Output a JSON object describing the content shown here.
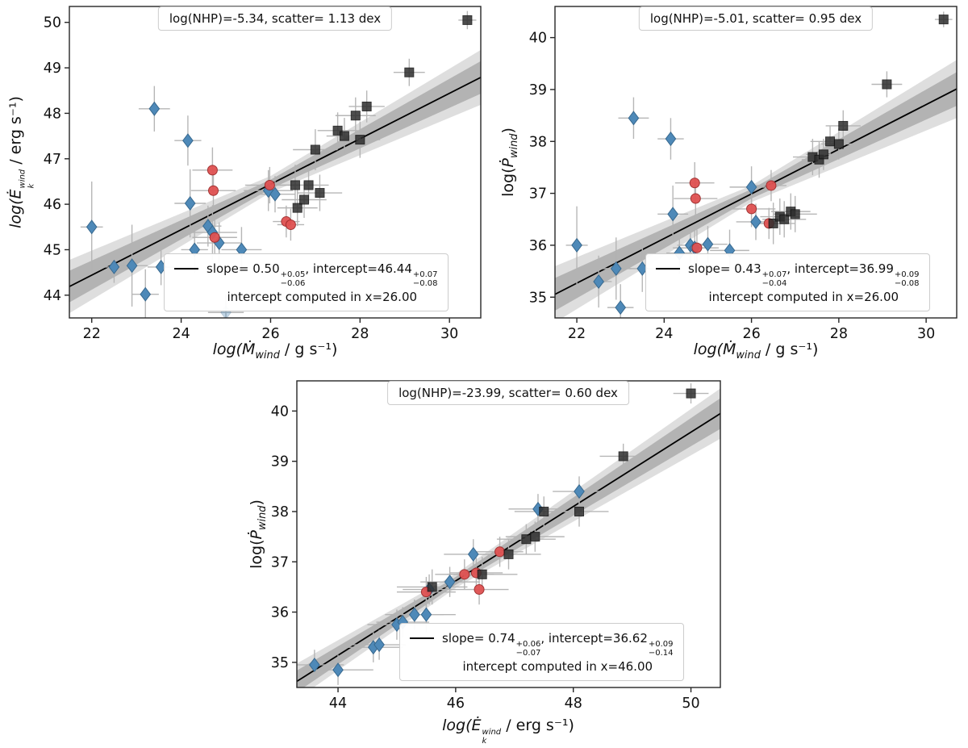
{
  "figure": {
    "background": "#ffffff"
  },
  "styles": {
    "fit_line_color": "#000000",
    "band_inner_color": "#8f8f8f",
    "band_outer_color": "#bdbdbd",
    "error_bar_color": "#b3b3b3",
    "frame_color": "#262626",
    "blue_marker": "#4e89b8",
    "red_marker": "#e05252",
    "dark_marker": "#2e2e2e"
  },
  "chart_data": [
    {
      "id": "ekwind-vs-mdot",
      "type": "scatter",
      "annotation": "log(NHP)=-5.34, scatter= 1.13 dex",
      "xlabel": "log(Mdot_wind / g s^-1)",
      "ylabel": "log(Edot_k^wind / erg s^-1)",
      "xlabel_tokens": [
        {
          "t": "log("
        },
        {
          "t": "Ṁ"
        },
        {
          "t": "wind",
          "pos": "sub"
        },
        {
          "t": " / g s⁻¹)",
          "pos": "roman"
        }
      ],
      "ylabel_tokens": [
        {
          "t": "log("
        },
        {
          "t": "Ė"
        },
        {
          "sup": "wind",
          "sub": "k"
        },
        {
          "t": " / erg s⁻¹)",
          "pos": "roman"
        }
      ],
      "xlim": [
        21.5,
        30.7
      ],
      "ylim": [
        43.5,
        50.35
      ],
      "xticks": [
        22,
        24,
        26,
        28,
        30
      ],
      "yticks": [
        44,
        45,
        46,
        47,
        48,
        49,
        50
      ],
      "fit": {
        "slope": 0.5,
        "intercept": 46.44,
        "x0": 26.0
      },
      "band": {
        "inner": [
          0.1,
          0.055
        ],
        "outer": [
          0.18,
          0.09
        ]
      },
      "legend_tokens": [
        {
          "t": "slope= 0.50"
        },
        {
          "sup": "+0.05",
          "sub": "−0.06"
        },
        {
          "t": ", intercept=46.44"
        },
        {
          "sup": "+0.07",
          "sub": "−0.08"
        }
      ],
      "legend_line2": "intercept computed in x=26.00",
      "series": [
        {
          "name": "blue-diamonds",
          "marker": "diamond",
          "fill": "#4e89b8",
          "edge": "#38698f",
          "alpha": 1.0,
          "points": [
            [
              22.0,
              45.5,
              0.25,
              1.0
            ],
            [
              22.5,
              44.62,
              0.3,
              0.35
            ],
            [
              22.9,
              44.65,
              0.35,
              0.9
            ],
            [
              23.2,
              44.02,
              0.3,
              0.55
            ],
            [
              23.4,
              48.1,
              0.35,
              0.5
            ],
            [
              23.55,
              44.62,
              0.3,
              0.4
            ],
            [
              24.15,
              47.4,
              0.3,
              0.55
            ],
            [
              24.2,
              46.02,
              0.35,
              0.75
            ],
            [
              24.3,
              45.0,
              0.3,
              0.5
            ],
            [
              24.6,
              45.52,
              0.3,
              0.45
            ],
            [
              24.7,
              45.38,
              0.55,
              0.6
            ],
            [
              24.85,
              45.15,
              0.5,
              0.45
            ],
            [
              25.0,
              43.62,
              0.4,
              0.4,
              0.35
            ],
            [
              25.35,
              45.0,
              0.45,
              0.5
            ],
            [
              25.95,
              46.3,
              0.55,
              0.45
            ],
            [
              26.1,
              46.22,
              0.45,
              0.4
            ]
          ]
        },
        {
          "name": "red-circles",
          "marker": "circle",
          "fill": "#e05252",
          "edge": "#9e2b2b",
          "alpha": 0.95,
          "points": [
            [
              24.7,
              46.75,
              0.45,
              0.5
            ],
            [
              24.72,
              46.3,
              0.5,
              0.45
            ],
            [
              24.75,
              45.27,
              0.5,
              0.4
            ],
            [
              25.98,
              46.42,
              0.55,
              0.4
            ],
            [
              26.35,
              45.62,
              0.3,
              0.35
            ],
            [
              26.45,
              45.55,
              0.3,
              0.35
            ]
          ]
        },
        {
          "name": "dark-squares",
          "marker": "square",
          "fill": "#2e2e2e",
          "edge": "#121212",
          "alpha": 0.85,
          "points": [
            [
              26.55,
              46.42,
              0.5,
              0.45
            ],
            [
              26.6,
              45.92,
              0.45,
              0.4
            ],
            [
              26.75,
              46.1,
              0.5,
              0.4
            ],
            [
              26.85,
              46.42,
              0.45,
              0.4
            ],
            [
              27.0,
              47.2,
              0.5,
              0.45
            ],
            [
              27.1,
              46.25,
              0.5,
              0.4
            ],
            [
              27.5,
              47.62,
              0.45,
              0.4
            ],
            [
              27.65,
              47.5,
              0.4,
              0.4
            ],
            [
              27.9,
              47.95,
              0.45,
              0.4
            ],
            [
              28.0,
              47.42,
              0.45,
              0.4
            ],
            [
              28.15,
              48.15,
              0.4,
              0.35
            ],
            [
              29.1,
              48.9,
              0.35,
              0.3
            ],
            [
              30.4,
              50.05,
              0.2,
              0.2
            ]
          ]
        }
      ]
    },
    {
      "id": "pwind-vs-mdot",
      "type": "scatter",
      "annotation": "log(NHP)=-5.01, scatter= 0.95 dex",
      "xlabel": "log(Mdot_wind / g s^-1)",
      "ylabel": "log(Pdot_wind)",
      "xlabel_tokens": [
        {
          "t": "log("
        },
        {
          "t": "Ṁ"
        },
        {
          "t": "wind",
          "pos": "sub"
        },
        {
          "t": " / g s⁻¹)",
          "pos": "roman"
        }
      ],
      "ylabel_tokens": [
        {
          "t": "log(",
          "pos": "roman"
        },
        {
          "t": "Ṗ"
        },
        {
          "t": "wind",
          "pos": "sub"
        },
        {
          "t": ")",
          "pos": "roman"
        }
      ],
      "xlim": [
        21.5,
        30.7
      ],
      "ylim": [
        34.6,
        40.6
      ],
      "xticks": [
        22,
        24,
        26,
        28,
        30
      ],
      "yticks": [
        35,
        36,
        37,
        38,
        39,
        40
      ],
      "fit": {
        "slope": 0.43,
        "intercept": 36.99,
        "x0": 26.0
      },
      "band": {
        "inner": [
          0.09,
          0.05
        ],
        "outer": [
          0.16,
          0.085
        ]
      },
      "legend_tokens": [
        {
          "t": "slope= 0.43"
        },
        {
          "sup": "+0.07",
          "sub": "−0.04"
        },
        {
          "t": ", intercept=36.99"
        },
        {
          "sup": "+0.09",
          "sub": "−0.08"
        }
      ],
      "legend_line2": "intercept computed in x=26.00",
      "series": [
        {
          "name": "blue-diamonds",
          "marker": "diamond",
          "fill": "#4e89b8",
          "edge": "#38698f",
          "alpha": 1.0,
          "points": [
            [
              22.0,
              36.0,
              0.25,
              0.75
            ],
            [
              22.5,
              35.3,
              0.3,
              0.5
            ],
            [
              22.9,
              35.55,
              0.35,
              0.6
            ],
            [
              23.0,
              34.8,
              0.3,
              0.45
            ],
            [
              23.3,
              38.45,
              0.35,
              0.4
            ],
            [
              23.5,
              35.55,
              0.3,
              0.45
            ],
            [
              24.15,
              38.05,
              0.3,
              0.4
            ],
            [
              24.2,
              36.6,
              0.35,
              0.55
            ],
            [
              24.35,
              35.85,
              0.3,
              0.4
            ],
            [
              24.6,
              36.0,
              0.3,
              0.35
            ],
            [
              24.7,
              35.95,
              0.5,
              0.4
            ],
            [
              25.0,
              36.02,
              0.45,
              0.35
            ],
            [
              25.5,
              35.9,
              0.45,
              0.4
            ],
            [
              26.0,
              37.12,
              0.5,
              0.4
            ],
            [
              26.1,
              36.45,
              0.45,
              0.35
            ]
          ]
        },
        {
          "name": "red-circles",
          "marker": "circle",
          "fill": "#e05252",
          "edge": "#9e2b2b",
          "alpha": 0.95,
          "points": [
            [
              24.7,
              37.2,
              0.45,
              0.4
            ],
            [
              24.72,
              36.9,
              0.5,
              0.4
            ],
            [
              24.75,
              35.95,
              0.5,
              0.35
            ],
            [
              26.0,
              36.7,
              0.55,
              0.35
            ],
            [
              26.4,
              36.42,
              0.3,
              0.3
            ],
            [
              26.45,
              37.15,
              0.35,
              0.3
            ]
          ]
        },
        {
          "name": "dark-squares",
          "marker": "square",
          "fill": "#2e2e2e",
          "edge": "#121212",
          "alpha": 0.85,
          "points": [
            [
              26.5,
              36.42,
              0.5,
              0.4
            ],
            [
              26.65,
              36.55,
              0.45,
              0.35
            ],
            [
              26.75,
              36.5,
              0.5,
              0.35
            ],
            [
              26.9,
              36.65,
              0.45,
              0.35
            ],
            [
              27.0,
              36.6,
              0.5,
              0.35
            ],
            [
              27.4,
              37.7,
              0.45,
              0.35
            ],
            [
              27.55,
              37.65,
              0.4,
              0.35
            ],
            [
              27.65,
              37.75,
              0.4,
              0.3
            ],
            [
              27.8,
              38.0,
              0.45,
              0.3
            ],
            [
              28.0,
              37.95,
              0.4,
              0.3
            ],
            [
              28.1,
              38.3,
              0.4,
              0.3
            ],
            [
              29.1,
              39.1,
              0.35,
              0.25
            ],
            [
              30.4,
              40.35,
              0.2,
              0.15
            ]
          ]
        }
      ]
    },
    {
      "id": "pwind-vs-ekwind",
      "type": "scatter",
      "annotation": "log(NHP)=-23.99, scatter= 0.60 dex",
      "xlabel": "log(Edot_k^wind / erg s^-1)",
      "ylabel": "log(Pdot_wind)",
      "xlabel_tokens": [
        {
          "t": "log("
        },
        {
          "t": "Ė"
        },
        {
          "sup": "wind",
          "sub": "k"
        },
        {
          "t": " / erg s⁻¹)",
          "pos": "roman"
        }
      ],
      "ylabel_tokens": [
        {
          "t": "log(",
          "pos": "roman"
        },
        {
          "t": "Ṗ"
        },
        {
          "t": "wind",
          "pos": "sub"
        },
        {
          "t": ")",
          "pos": "roman"
        }
      ],
      "xlim": [
        43.3,
        50.5
      ],
      "ylim": [
        34.5,
        40.6
      ],
      "xticks": [
        44,
        46,
        48,
        50
      ],
      "yticks": [
        35,
        36,
        37,
        38,
        39,
        40
      ],
      "fit": {
        "slope": 0.74,
        "intercept": 36.62,
        "x0": 46.0
      },
      "band": {
        "inner": [
          0.08,
          0.05
        ],
        "outer": [
          0.14,
          0.08
        ]
      },
      "legend_tokens": [
        {
          "t": "slope= 0.74"
        },
        {
          "sup": "+0.06",
          "sub": "−0.07"
        },
        {
          "t": ", intercept=36.62"
        },
        {
          "sup": "+0.09",
          "sub": "−0.14"
        }
      ],
      "legend_line2": "intercept computed in x=46.00",
      "series": [
        {
          "name": "blue-diamonds",
          "marker": "diamond",
          "fill": "#4e89b8",
          "edge": "#38698f",
          "alpha": 1.0,
          "points": [
            [
              43.6,
              34.95,
              0.5,
              0.3
            ],
            [
              44.0,
              34.85,
              0.6,
              0.3
            ],
            [
              44.6,
              35.3,
              0.5,
              0.3
            ],
            [
              44.7,
              35.35,
              0.45,
              0.3
            ],
            [
              45.0,
              35.75,
              0.5,
              0.3
            ],
            [
              45.1,
              35.8,
              0.45,
              0.3
            ],
            [
              45.3,
              35.95,
              0.5,
              0.3
            ],
            [
              45.5,
              35.95,
              0.5,
              0.35
            ],
            [
              45.55,
              36.45,
              0.45,
              0.3
            ],
            [
              45.9,
              36.6,
              0.5,
              0.3
            ],
            [
              46.3,
              37.15,
              0.5,
              0.3
            ],
            [
              47.4,
              38.05,
              0.5,
              0.3
            ],
            [
              48.1,
              38.4,
              0.45,
              0.3
            ]
          ]
        },
        {
          "name": "red-circles",
          "marker": "circle",
          "fill": "#e05252",
          "edge": "#9e2b2b",
          "alpha": 0.95,
          "points": [
            [
              45.5,
              36.4,
              0.5,
              0.3
            ],
            [
              46.15,
              36.75,
              0.5,
              0.3
            ],
            [
              46.35,
              36.78,
              0.45,
              0.3
            ],
            [
              46.4,
              36.45,
              0.5,
              0.3
            ],
            [
              46.75,
              37.2,
              0.4,
              0.3
            ]
          ]
        },
        {
          "name": "dark-squares",
          "marker": "square",
          "fill": "#2e2e2e",
          "edge": "#121212",
          "alpha": 0.85,
          "points": [
            [
              45.6,
              36.5,
              0.6,
              0.35
            ],
            [
              46.45,
              36.75,
              0.6,
              0.35
            ],
            [
              46.9,
              37.15,
              0.55,
              0.3
            ],
            [
              47.2,
              37.45,
              0.5,
              0.3
            ],
            [
              47.35,
              37.5,
              0.5,
              0.3
            ],
            [
              47.5,
              38.0,
              0.5,
              0.3
            ],
            [
              48.1,
              38.0,
              0.5,
              0.3
            ],
            [
              48.85,
              39.1,
              0.4,
              0.25
            ],
            [
              50.0,
              40.35,
              0.3,
              0.2
            ]
          ]
        }
      ]
    }
  ]
}
